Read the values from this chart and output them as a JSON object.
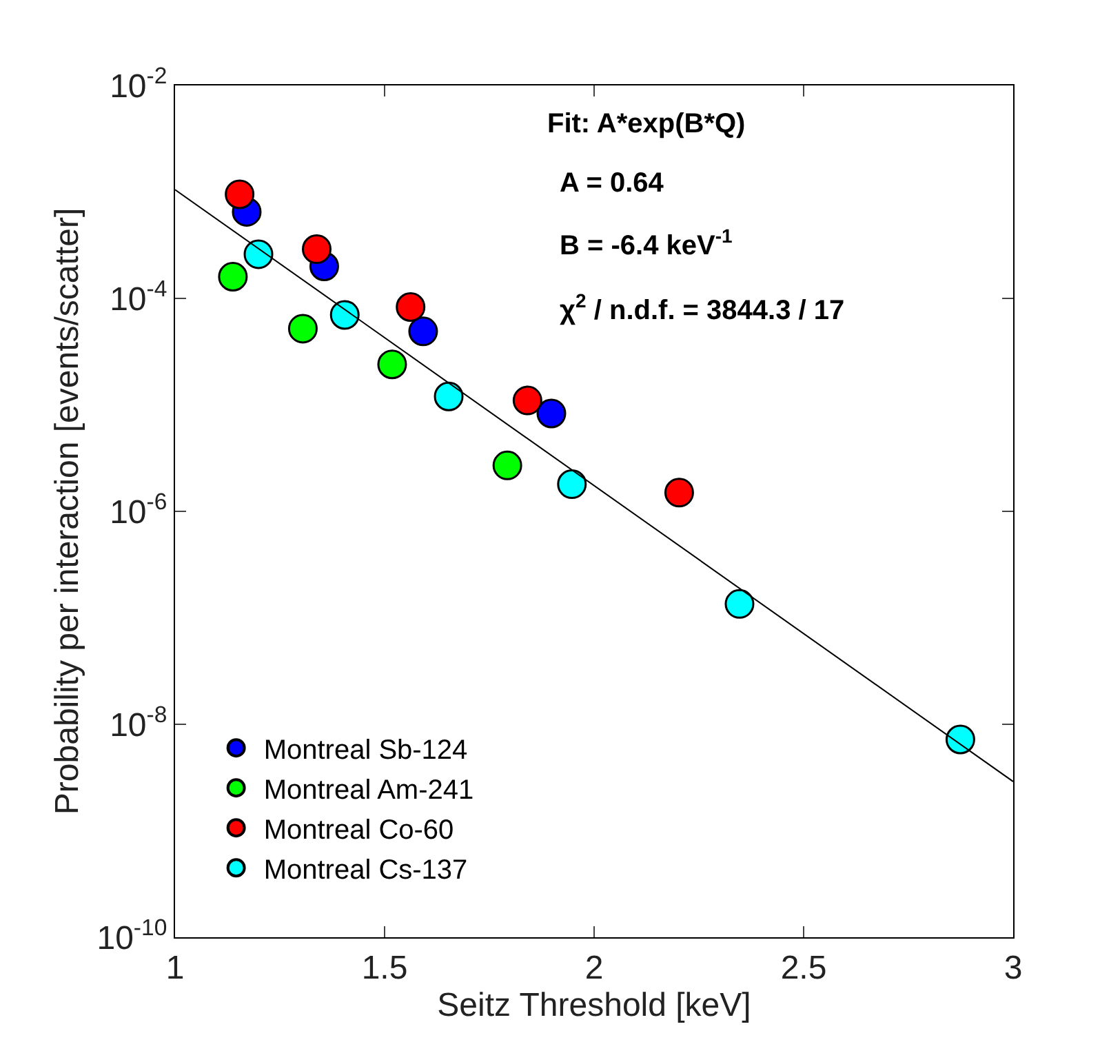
{
  "chart_data": {
    "type": "scatter",
    "xlabel": "Seitz Threshold [keV]",
    "ylabel": "Probability per interaction [events/scatter]",
    "log": "y",
    "xlim": [
      1,
      3
    ],
    "ylim": [
      1e-10,
      0.01
    ],
    "xticks": [
      1,
      1.5,
      2,
      2.5,
      3
    ],
    "yticks": [
      {
        "value": 1e-10,
        "label": "10$^{-10}$"
      },
      {
        "value": 1e-08,
        "label": "10$^{-8}$"
      },
      {
        "value": 1e-06,
        "label": "10$^{-6}$"
      },
      {
        "value": 0.0001,
        "label": "10$^{-4}$"
      },
      {
        "value": 0.01,
        "label": "10$^{-2}$"
      }
    ],
    "legend": "bottom left",
    "marker": "circle",
    "annotations": [
      "Fit: A*exp(B*Q)",
      "A = 0.64",
      "B = -6.4 keV$^{-1}$",
      "χ$^{2}$ / n.d.f. = 3844.3 / 17"
    ],
    "series": [
      {
        "name": "Montreal Sb-124",
        "color": "#0000ff",
        "x": [
          1.171,
          1.356,
          1.592,
          1.898
        ],
        "values": [
          0.00065,
          0.0002,
          4.9e-05,
          8.3e-06
        ]
      },
      {
        "name": "Montreal Am-241",
        "color": "#00ff00",
        "x": [
          1.138,
          1.305,
          1.518,
          1.793
        ],
        "values": [
          0.00016,
          5.2e-05,
          2.4e-05,
          2.7e-06
        ]
      },
      {
        "name": "Montreal Co-60",
        "color": "#ff0000",
        "x": [
          1.154,
          1.338,
          1.562,
          1.841,
          2.203
        ],
        "values": [
          0.00095,
          0.00029,
          8.3e-05,
          1.1e-05,
          1.5e-06
        ]
      },
      {
        "name": "Montreal Cs-137",
        "color": "#00ffff",
        "x": [
          1.199,
          1.405,
          1.653,
          1.947,
          2.347,
          2.874
        ],
        "values": [
          0.00026,
          7e-05,
          1.2e-05,
          1.8e-06,
          1.35e-07,
          7.2e-09
        ]
      },
      {
        "type": "line",
        "marker": "none",
        "color": "#000000",
        "x": [
          1,
          3
        ],
        "values": [
          0.00105,
          2.9e-09
        ]
      }
    ]
  }
}
